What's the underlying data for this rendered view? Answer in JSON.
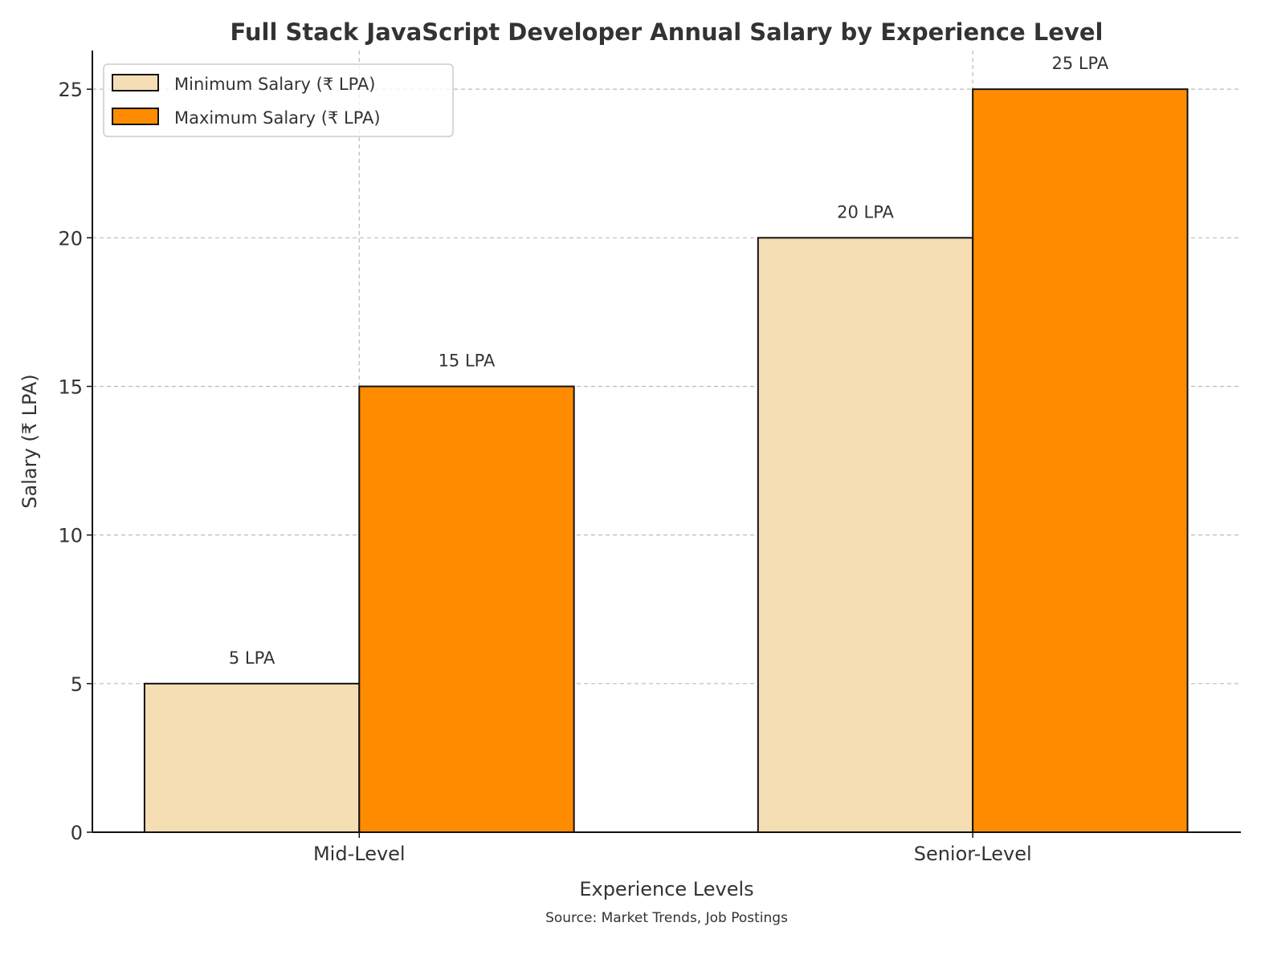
{
  "chart_data": {
    "type": "bar",
    "title": "Full Stack JavaScript Developer Annual Salary by Experience Level",
    "xlabel": "Experience Levels",
    "ylabel": "Salary (₹ LPA)",
    "caption": "Source: Market Trends, Job Postings",
    "categories": [
      "Mid-Level",
      "Senior-Level"
    ],
    "series": [
      {
        "name": "Minimum Salary (₹ LPA)",
        "values": [
          5,
          20
        ],
        "labels": [
          "5 LPA",
          "20 LPA"
        ],
        "color": "#F5DEB3"
      },
      {
        "name": "Maximum Salary (₹ LPA)",
        "values": [
          15,
          25
        ],
        "labels": [
          "15 LPA",
          "25 LPA"
        ],
        "color": "#FF8C00"
      }
    ],
    "ylim": [
      0,
      26.3
    ],
    "yticks": [
      0,
      5,
      10,
      15,
      20,
      25
    ],
    "grid": true,
    "legend": "top-left"
  }
}
